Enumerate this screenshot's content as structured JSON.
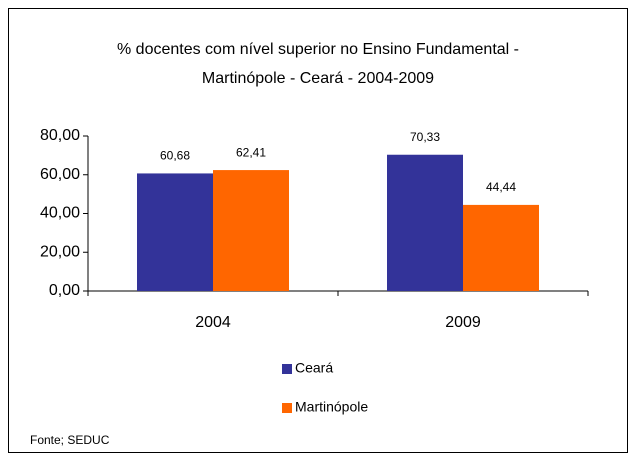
{
  "chart_data": {
    "type": "bar",
    "title": [
      "% docentes com nível  superior no Ensino Fundamental -",
      "Martinópole -  Ceará - 2004-2009"
    ],
    "categories": [
      "2004",
      "2009"
    ],
    "series": [
      {
        "name": "Ceará",
        "color": "#333399",
        "values": [
          60.68,
          70.33
        ],
        "value_labels": [
          "60,68",
          "70,33"
        ]
      },
      {
        "name": "Martinópole",
        "color": "#ff6600",
        "values": [
          62.41,
          44.44
        ],
        "value_labels": [
          "62,41",
          "44,44"
        ]
      }
    ],
    "ylim": [
      0,
      80
    ],
    "yticks": [
      {
        "value": 0,
        "label": "0,00"
      },
      {
        "value": 20,
        "label": "20,00"
      },
      {
        "value": 40,
        "label": "40,00"
      },
      {
        "value": 60,
        "label": "60,00"
      },
      {
        "value": 80,
        "label": "80,00"
      }
    ],
    "legend": "bottom",
    "source": "Fonte; SEDUC"
  }
}
